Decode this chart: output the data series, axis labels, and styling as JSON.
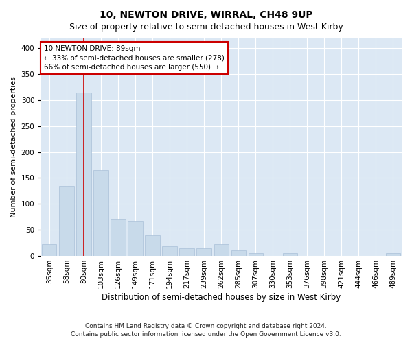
{
  "title": "10, NEWTON DRIVE, WIRRAL, CH48 9UP",
  "subtitle": "Size of property relative to semi-detached houses in West Kirby",
  "xlabel": "Distribution of semi-detached houses by size in West Kirby",
  "ylabel": "Number of semi-detached properties",
  "bar_color": "#c8daea",
  "bar_edge_color": "#aac0d8",
  "background_color": "#dce8f4",
  "grid_color": "#ffffff",
  "fig_background": "#ffffff",
  "categories": [
    "35sqm",
    "58sqm",
    "80sqm",
    "103sqm",
    "126sqm",
    "149sqm",
    "171sqm",
    "194sqm",
    "217sqm",
    "239sqm",
    "262sqm",
    "285sqm",
    "307sqm",
    "330sqm",
    "353sqm",
    "376sqm",
    "398sqm",
    "421sqm",
    "444sqm",
    "466sqm",
    "489sqm"
  ],
  "values": [
    22,
    135,
    315,
    165,
    72,
    68,
    40,
    18,
    15,
    14,
    22,
    11,
    5,
    0,
    5,
    0,
    0,
    0,
    0,
    0,
    5
  ],
  "vline_x": 2,
  "vline_color": "#cc0000",
  "annotation_line1": "10 NEWTON DRIVE: 89sqm",
  "annotation_line2": "← 33% of semi-detached houses are smaller (278)",
  "annotation_line3": "66% of semi-detached houses are larger (550) →",
  "annotation_box_color": "#ffffff",
  "annotation_box_edge_color": "#cc0000",
  "footer_line1": "Contains HM Land Registry data © Crown copyright and database right 2024.",
  "footer_line2": "Contains public sector information licensed under the Open Government Licence v3.0.",
  "ylim": [
    0,
    420
  ],
  "title_fontsize": 10,
  "subtitle_fontsize": 9,
  "xlabel_fontsize": 8.5,
  "ylabel_fontsize": 8,
  "tick_fontsize": 7.5,
  "annotation_fontsize": 7.5,
  "footer_fontsize": 6.5
}
